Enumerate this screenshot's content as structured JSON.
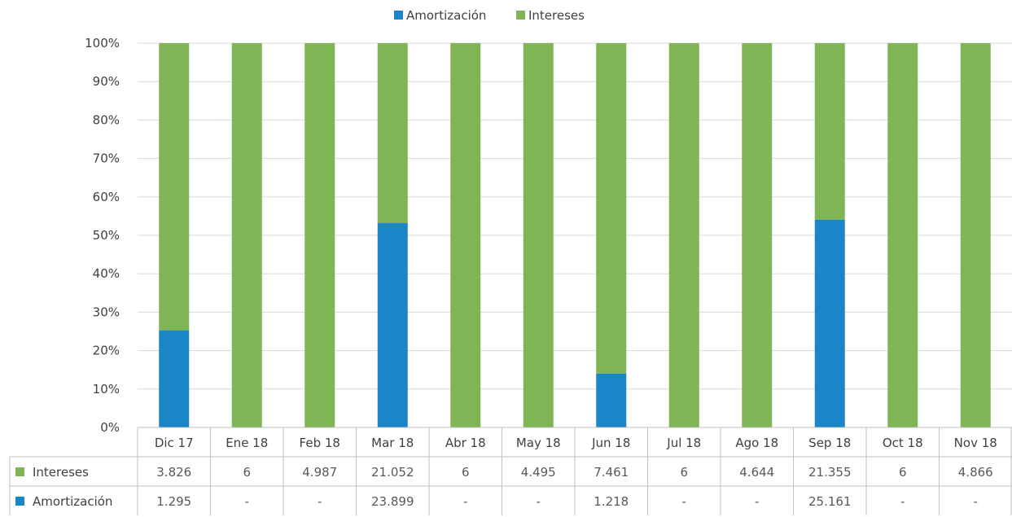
{
  "chart_data": {
    "type": "bar",
    "stacked": "percent",
    "categories": [
      "Dic 17",
      "Ene 18",
      "Feb 18",
      "Mar 18",
      "Abr 18",
      "May 18",
      "Jun 18",
      "Jul 18",
      "Ago 18",
      "Sep 18",
      "Oct 18",
      "Nov 18"
    ],
    "series": [
      {
        "name": "Amortización",
        "color": "#1a86c8",
        "values": [
          1295,
          0,
          0,
          23899,
          0,
          0,
          1218,
          0,
          0,
          25161,
          0,
          0
        ],
        "table_labels": [
          "1.295",
          "-",
          "-",
          "23.899",
          "-",
          "-",
          "1.218",
          "-",
          "-",
          "25.161",
          "-",
          "-"
        ]
      },
      {
        "name": "Intereses",
        "color": "#7fb554",
        "values": [
          3826,
          6,
          4987,
          21052,
          6,
          4495,
          7461,
          6,
          4644,
          21355,
          6,
          4866
        ],
        "table_labels": [
          "3.826",
          "6",
          "4.987",
          "21.052",
          "6",
          "4.495",
          "7.461",
          "6",
          "4.644",
          "21.355",
          "6",
          "4.866"
        ]
      }
    ],
    "y_ticks": [
      "0%",
      "10%",
      "20%",
      "30%",
      "40%",
      "50%",
      "60%",
      "70%",
      "80%",
      "90%",
      "100%"
    ],
    "ylim": [
      0,
      100
    ],
    "grid": true,
    "legend": "top-center",
    "data_table": true,
    "table_rows": [
      "Intereses",
      "Amortización"
    ]
  }
}
